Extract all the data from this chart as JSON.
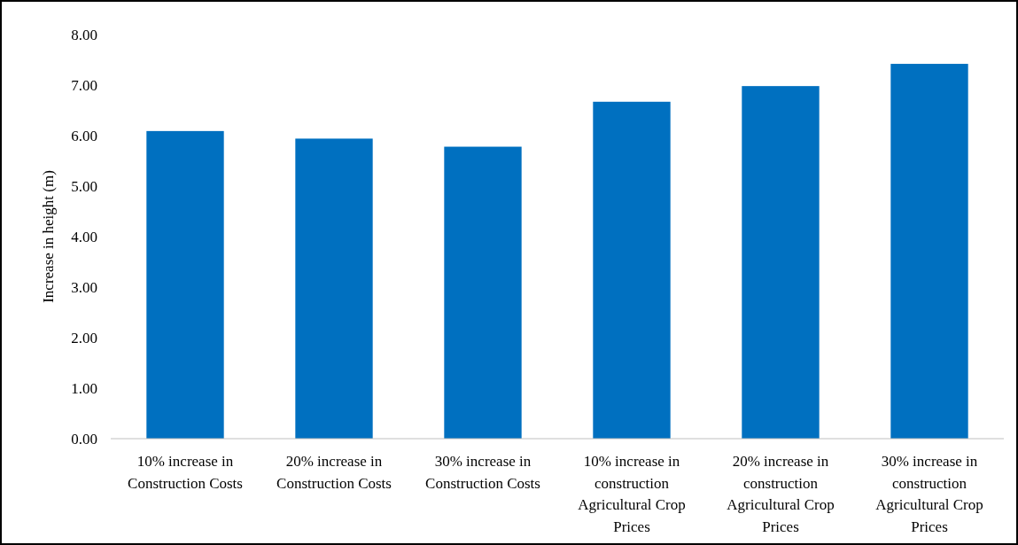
{
  "chart_data": {
    "type": "bar",
    "ylabel": "Increase in height (m)",
    "categories": [
      "10% increase in Construction Costs",
      "20% increase in Construction Costs",
      "30% increase in Construction Costs",
      "10% increase in construction Agricultural Crop Prices",
      "20% increase in construction Agricultural Crop Prices",
      "30% increase in construction Agricultural Crop Prices"
    ],
    "values": [
      6.09,
      5.94,
      5.78,
      6.67,
      6.98,
      7.42
    ],
    "color": "#0070c0",
    "ylim": [
      0,
      8
    ],
    "yticks": [
      {
        "value": 0,
        "label": "0.00"
      },
      {
        "value": 1,
        "label": "1.00"
      },
      {
        "value": 2,
        "label": "2.00"
      },
      {
        "value": 3,
        "label": "3.00"
      },
      {
        "value": 4,
        "label": "4.00"
      },
      {
        "value": 5,
        "label": "5.00"
      },
      {
        "value": 6,
        "label": "6.00"
      },
      {
        "value": 7,
        "label": "7.00"
      },
      {
        "value": 8,
        "label": "8.00"
      }
    ],
    "grid": false
  }
}
